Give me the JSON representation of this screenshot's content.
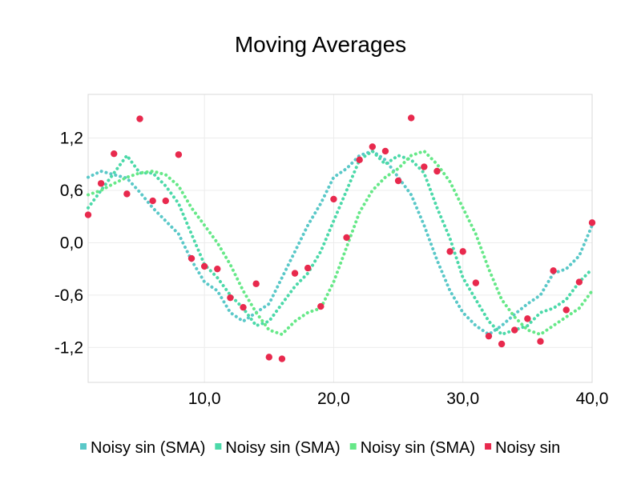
{
  "chart_data": {
    "type": "line",
    "title": "Moving Averages",
    "xlabel": "",
    "ylabel": "",
    "xlim": [
      1,
      40
    ],
    "ylim": [
      -1.6,
      1.7
    ],
    "x_ticks": [
      10,
      20,
      30,
      40
    ],
    "x_tick_labels": [
      "10,0",
      "20,0",
      "30,0",
      "40,0"
    ],
    "y_ticks": [
      1.2,
      0.6,
      0.0,
      -0.6,
      -1.2
    ],
    "y_tick_labels": [
      "1,2",
      "0,6",
      "0,0",
      "-0,6",
      "-1,2"
    ],
    "grid": true,
    "legend_position": "bottom",
    "series": [
      {
        "name": "Noisy sin (SMA)",
        "kind": "line",
        "style": "dotted",
        "color": "#5ac8c8",
        "x": [
          1,
          2,
          3,
          4,
          5,
          6,
          7,
          8,
          9,
          10,
          11,
          12,
          13,
          14,
          15,
          16,
          17,
          18,
          19,
          20,
          21,
          22,
          23,
          24,
          25,
          26,
          27,
          28,
          29,
          30,
          31,
          32,
          33,
          34,
          35,
          36,
          37,
          38,
          39,
          40
        ],
        "y": [
          0.75,
          0.82,
          0.78,
          0.74,
          0.58,
          0.4,
          0.25,
          0.1,
          -0.2,
          -0.45,
          -0.55,
          -0.8,
          -0.9,
          -0.8,
          -0.7,
          -0.4,
          -0.1,
          0.2,
          0.45,
          0.75,
          0.85,
          1.0,
          1.05,
          0.95,
          0.75,
          0.55,
          0.2,
          -0.2,
          -0.55,
          -0.8,
          -0.95,
          -1.05,
          -0.95,
          -0.82,
          -0.7,
          -0.6,
          -0.35,
          -0.3,
          -0.15,
          0.2
        ]
      },
      {
        "name": "Noisy sin (SMA)",
        "kind": "line",
        "style": "dotted",
        "color": "#4cd9a9",
        "x": [
          1,
          2,
          3,
          4,
          5,
          6,
          7,
          8,
          9,
          10,
          11,
          12,
          13,
          14,
          15,
          16,
          17,
          18,
          19,
          20,
          21,
          22,
          23,
          24,
          25,
          26,
          27,
          28,
          29,
          30,
          31,
          32,
          33,
          34,
          35,
          36,
          37,
          38,
          39,
          40
        ],
        "y": [
          0.4,
          0.6,
          0.8,
          1.0,
          0.8,
          0.8,
          0.65,
          0.45,
          0.1,
          -0.25,
          -0.4,
          -0.6,
          -0.75,
          -0.95,
          -0.9,
          -0.7,
          -0.5,
          -0.35,
          -0.1,
          0.25,
          0.6,
          0.95,
          1.05,
          0.9,
          1.0,
          0.95,
          0.8,
          0.4,
          0.05,
          -0.4,
          -0.65,
          -0.9,
          -1.05,
          -1.0,
          -0.95,
          -0.8,
          -0.75,
          -0.65,
          -0.45,
          -0.3
        ]
      },
      {
        "name": "Noisy sin (SMA)",
        "kind": "line",
        "style": "dotted",
        "color": "#66e888",
        "x": [
          1,
          2,
          3,
          4,
          5,
          6,
          7,
          8,
          9,
          10,
          11,
          12,
          13,
          14,
          15,
          16,
          17,
          18,
          19,
          20,
          21,
          22,
          23,
          24,
          25,
          26,
          27,
          28,
          29,
          30,
          31,
          32,
          33,
          34,
          35,
          36,
          37,
          38,
          39,
          40
        ],
        "y": [
          0.55,
          0.6,
          0.68,
          0.75,
          0.8,
          0.82,
          0.78,
          0.65,
          0.4,
          0.2,
          0.0,
          -0.25,
          -0.55,
          -0.8,
          -1.0,
          -1.05,
          -0.9,
          -0.8,
          -0.75,
          -0.45,
          -0.05,
          0.35,
          0.6,
          0.75,
          0.85,
          1.0,
          1.05,
          0.9,
          0.7,
          0.4,
          0.1,
          -0.3,
          -0.65,
          -0.85,
          -1.0,
          -1.05,
          -0.95,
          -0.85,
          -0.75,
          -0.55
        ]
      },
      {
        "name": "Noisy sin",
        "kind": "scatter",
        "color": "#e8294d",
        "x": [
          1,
          2,
          3,
          4,
          5,
          6,
          7,
          8,
          9,
          10,
          11,
          12,
          13,
          14,
          15,
          16,
          17,
          18,
          19,
          20,
          21,
          22,
          23,
          24,
          25,
          26,
          27,
          28,
          29,
          30,
          31,
          32,
          33,
          34,
          35,
          36,
          37,
          38,
          39,
          40
        ],
        "y": [
          0.32,
          0.68,
          1.02,
          0.56,
          1.42,
          0.48,
          0.48,
          1.01,
          -0.18,
          -0.27,
          -0.3,
          -0.63,
          -0.74,
          -0.47,
          -1.31,
          -1.33,
          -0.35,
          -0.29,
          -0.73,
          0.5,
          0.06,
          0.95,
          1.1,
          1.05,
          0.71,
          1.43,
          0.87,
          0.82,
          -0.1,
          -0.1,
          -0.46,
          -1.07,
          -1.16,
          -1.0,
          -0.87,
          -1.13,
          -0.32,
          -0.77,
          -0.45,
          0.23
        ]
      }
    ]
  }
}
